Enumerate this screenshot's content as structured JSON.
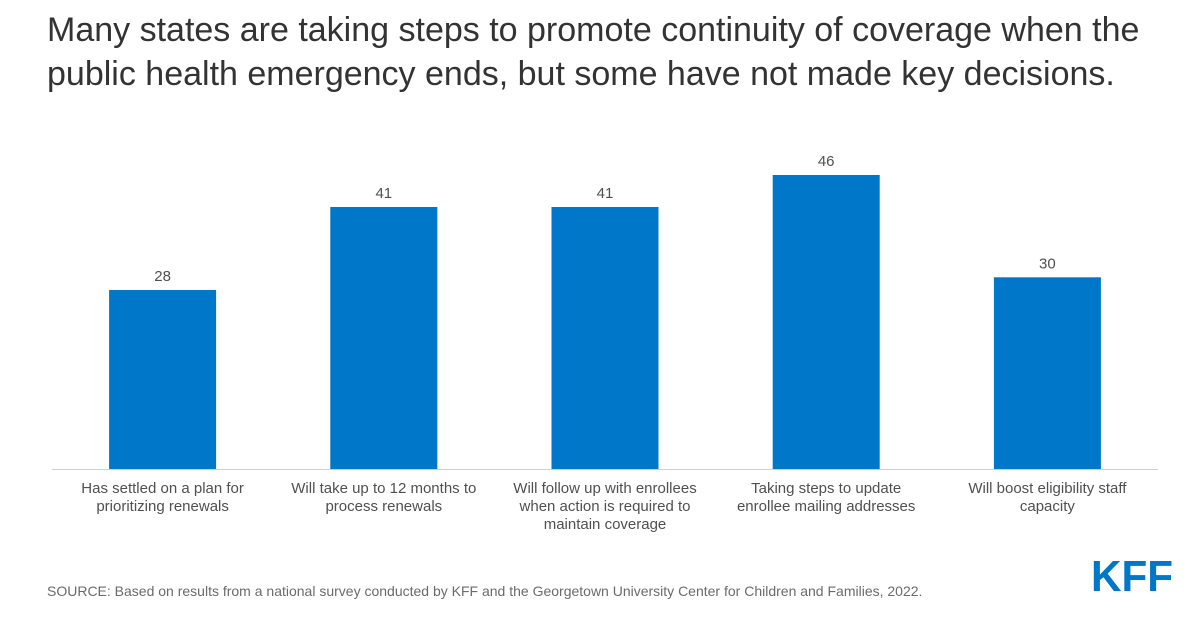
{
  "title": "Many states are taking steps to promote continuity of coverage when the public health emergency ends, but some have not made key decisions.",
  "source": "SOURCE: Based on results from a national survey conducted by KFF and the Georgetown University Center for Children and Families, 2022.",
  "logo_text": "KFF",
  "colors": {
    "bar": "#0077C8",
    "logo": "#0077C8"
  },
  "chart_data": {
    "type": "bar",
    "title": "Many states are taking steps to promote continuity of coverage when the public health emergency ends, but some have not made key decisions.",
    "categories": [
      "Has settled on a plan for prioritizing renewals",
      "Will take up to 12 months to process renewals",
      "Will follow up with enrollees when action is required to maintain coverage",
      "Taking steps to update enrollee mailing addresses",
      "Will boost eligibility staff capacity"
    ],
    "values": [
      28,
      41,
      41,
      46,
      30
    ],
    "ylim": [
      0,
      46
    ],
    "grid": false,
    "xlabel": "",
    "ylabel": ""
  }
}
